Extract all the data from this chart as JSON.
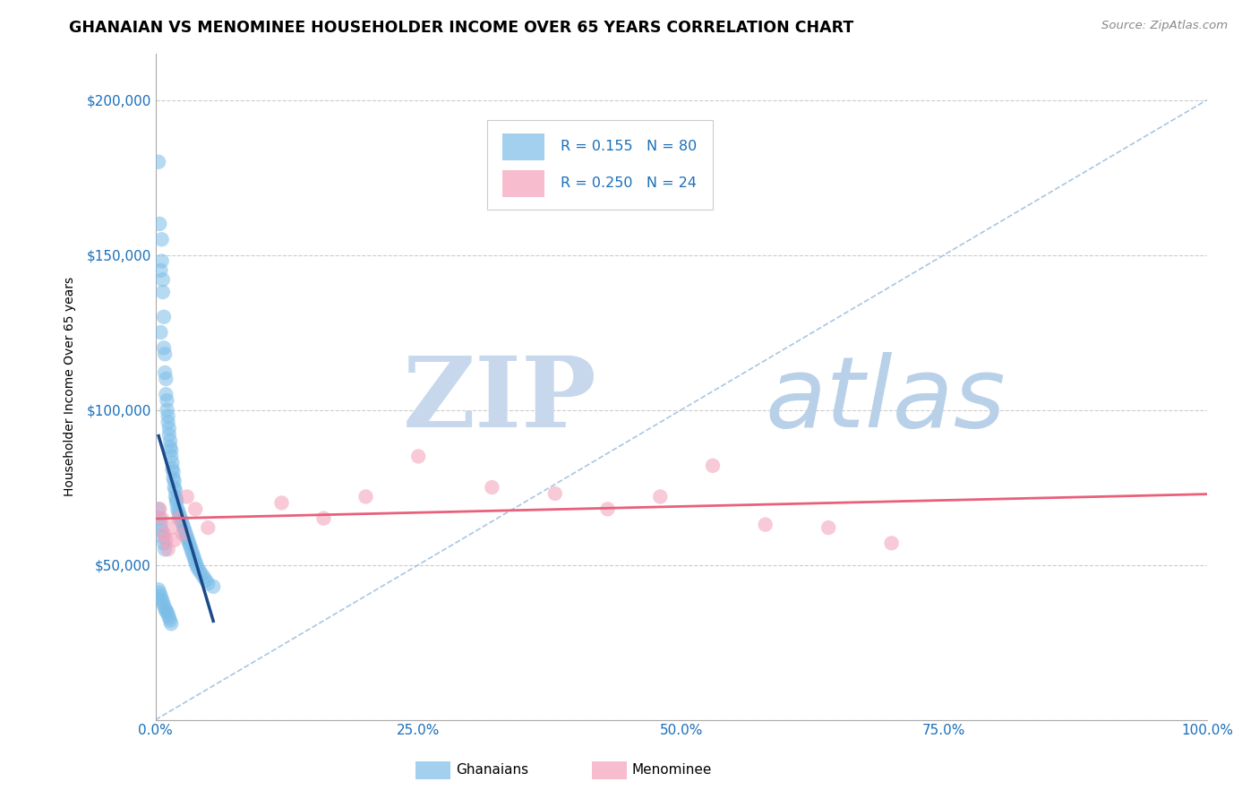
{
  "title": "GHANAIAN VS MENOMINEE HOUSEHOLDER INCOME OVER 65 YEARS CORRELATION CHART",
  "source_text": "Source: ZipAtlas.com",
  "ylabel": "Householder Income Over 65 years",
  "xlim": [
    0.0,
    1.0
  ],
  "ylim": [
    0,
    215000
  ],
  "xticks": [
    0.0,
    0.25,
    0.5,
    0.75,
    1.0
  ],
  "xticklabels": [
    "0.0%",
    "25.0%",
    "50.0%",
    "75.0%",
    "100.0%"
  ],
  "yticks": [
    0,
    50000,
    100000,
    150000,
    200000
  ],
  "yticklabels": [
    "",
    "$50,000",
    "$100,000",
    "$150,000",
    "$200,000"
  ],
  "ghanaian_color": "#7bbde8",
  "menominee_color": "#f4a0b8",
  "ghanaian_R": 0.155,
  "ghanaian_N": 80,
  "menominee_R": 0.25,
  "menominee_N": 24,
  "background_color": "#ffffff",
  "grid_color": "#cccccc",
  "tick_color": "#1a6fba",
  "diag_line_color": "#a0c0e0",
  "blue_reg_color": "#1a4a8a",
  "pink_reg_color": "#e8607a",
  "watermark_zip_color": "#c8d8ec",
  "watermark_atlas_color": "#b8cce4",
  "ghanaian_x": [
    0.003,
    0.004,
    0.005,
    0.005,
    0.006,
    0.006,
    0.007,
    0.007,
    0.008,
    0.008,
    0.009,
    0.009,
    0.01,
    0.01,
    0.011,
    0.011,
    0.012,
    0.012,
    0.013,
    0.013,
    0.014,
    0.014,
    0.015,
    0.015,
    0.016,
    0.016,
    0.017,
    0.017,
    0.018,
    0.018,
    0.019,
    0.019,
    0.02,
    0.02,
    0.021,
    0.022,
    0.023,
    0.024,
    0.025,
    0.026,
    0.027,
    0.028,
    0.029,
    0.03,
    0.031,
    0.032,
    0.033,
    0.034,
    0.035,
    0.036,
    0.037,
    0.038,
    0.039,
    0.04,
    0.042,
    0.044,
    0.046,
    0.048,
    0.05,
    0.055,
    0.003,
    0.004,
    0.005,
    0.006,
    0.007,
    0.008,
    0.009,
    0.01,
    0.011,
    0.012,
    0.013,
    0.014,
    0.015,
    0.003,
    0.004,
    0.005,
    0.006,
    0.007,
    0.008,
    0.009
  ],
  "ghanaian_y": [
    180000,
    160000,
    145000,
    125000,
    155000,
    148000,
    142000,
    138000,
    130000,
    120000,
    118000,
    112000,
    110000,
    105000,
    103000,
    100000,
    98000,
    96000,
    94000,
    92000,
    90000,
    88000,
    87000,
    85000,
    83000,
    81000,
    80000,
    78000,
    77000,
    75000,
    74000,
    72000,
    71000,
    70000,
    68000,
    67000,
    66000,
    65000,
    64000,
    63000,
    62000,
    61000,
    60000,
    59000,
    58000,
    57000,
    56000,
    55000,
    54000,
    53000,
    52000,
    51000,
    50000,
    49000,
    48000,
    47000,
    46000,
    45000,
    44000,
    43000,
    42000,
    41000,
    40000,
    39000,
    38000,
    37000,
    36000,
    35000,
    35000,
    34000,
    33000,
    32000,
    31000,
    68000,
    65000,
    63000,
    61000,
    59000,
    57000,
    55000
  ],
  "menominee_x": [
    0.004,
    0.006,
    0.008,
    0.01,
    0.012,
    0.015,
    0.018,
    0.022,
    0.026,
    0.03,
    0.038,
    0.05,
    0.12,
    0.16,
    0.2,
    0.25,
    0.32,
    0.38,
    0.43,
    0.48,
    0.53,
    0.58,
    0.64,
    0.7
  ],
  "menominee_y": [
    68000,
    65000,
    60000,
    58000,
    55000,
    62000,
    58000,
    65000,
    60000,
    72000,
    68000,
    62000,
    70000,
    65000,
    72000,
    85000,
    75000,
    73000,
    68000,
    72000,
    82000,
    63000,
    62000,
    57000
  ]
}
